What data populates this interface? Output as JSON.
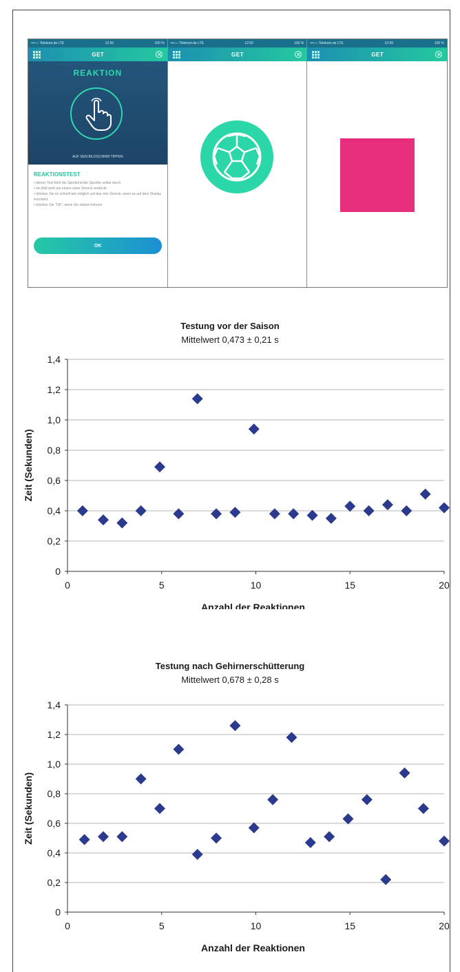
{
  "phones": {
    "status_carrier": "•••○○ Telekom.de  LTE",
    "status_time": "12:50",
    "status_battery": "100 %",
    "nav_title": "GET",
    "screen1": {
      "hero_title": "REAKTION",
      "hero_subtitle": "AUF DEN BILDSCHIRM TIPPEN",
      "test_title": "REAKTIONSTEST",
      "instructions": [
        "diesen Test führt die Sportlerin/der Sportler selbst durch",
        "ein Ball wird von einem roten Viereck verdeckt",
        "drücken Sie so schnell wie möglich auf das rote Viereck, wenn es auf dem Display erscheint",
        "drücken Sie \"OK\", wenn Sie starten können"
      ],
      "ok_label": "OK"
    },
    "colors": {
      "accent": "#2fd9b0",
      "square": "#e62e7d",
      "hero": "#23557a"
    }
  },
  "chart_data": [
    {
      "type": "scatter",
      "title": "Testung vor der Saison",
      "subtitle": "Mittelwert 0,473 ± 0,21 s",
      "xlabel": "Anzahl der Reaktionen",
      "ylabel": "Zeit (Sekunden)",
      "xlim": [
        0,
        20
      ],
      "ylim": [
        0,
        1.4
      ],
      "xticks": [
        "0",
        "5",
        "10",
        "15",
        "20"
      ],
      "yticks": [
        "0",
        "0,2",
        "0,4",
        "0,6",
        "0,8",
        "1,0",
        "1,2",
        "1,4"
      ],
      "grid": "horizontal",
      "marker_color": "#2b3a8c",
      "x": [
        0.8,
        1.9,
        2.9,
        3.9,
        4.9,
        5.9,
        6.9,
        7.9,
        8.9,
        9.9,
        11,
        12,
        13,
        14,
        15,
        16,
        17,
        18,
        19,
        20
      ],
      "y": [
        0.4,
        0.34,
        0.32,
        0.4,
        0.69,
        0.38,
        1.14,
        0.38,
        0.39,
        0.94,
        0.38,
        0.38,
        0.37,
        0.35,
        0.43,
        0.4,
        0.44,
        0.4,
        0.51,
        0.42
      ]
    },
    {
      "type": "scatter",
      "title": "Testung nach Gehirnerschütterung",
      "subtitle": "Mittelwert 0,678 ± 0,28 s",
      "xlabel": "Anzahl der Reaktionen",
      "ylabel": "Zeit (Sekunden)",
      "xlim": [
        0,
        20
      ],
      "ylim": [
        0,
        1.4
      ],
      "xticks": [
        "0",
        "5",
        "10",
        "15",
        "20"
      ],
      "yticks": [
        "0",
        "0,2",
        "0,4",
        "0,6",
        "0,8",
        "1,0",
        "1,2",
        "1,4"
      ],
      "grid": "horizontal",
      "marker_color": "#2b3a8c",
      "x": [
        0.9,
        1.9,
        2.9,
        3.9,
        4.9,
        5.9,
        6.9,
        7.9,
        8.9,
        9.9,
        10.9,
        11.9,
        12.9,
        13.9,
        14.9,
        15.9,
        16.9,
        17.9,
        18.9,
        20
      ],
      "y": [
        0.49,
        0.51,
        0.51,
        0.9,
        0.7,
        1.1,
        0.39,
        0.5,
        1.26,
        0.57,
        0.76,
        1.18,
        0.47,
        0.51,
        0.63,
        0.76,
        0.22,
        0.94,
        0.7,
        0.48
      ]
    }
  ]
}
